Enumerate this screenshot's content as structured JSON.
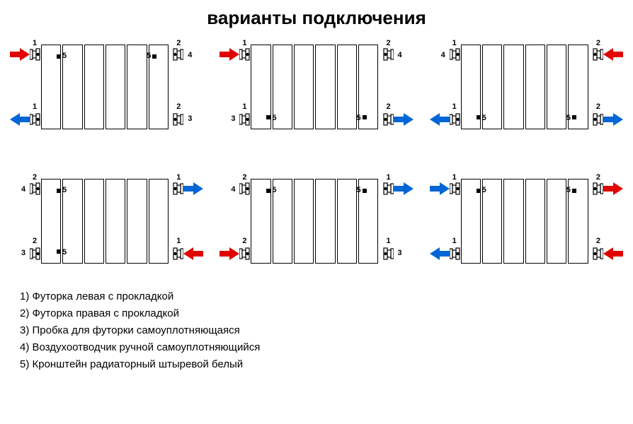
{
  "title": "варианты подключения",
  "colors": {
    "red": "#e20000",
    "blue": "#0066d6",
    "black": "#000000"
  },
  "labels": {
    "futorka_left": "1",
    "futorka_right": "2",
    "plug": "3",
    "air_vent": "4",
    "bracket": "5"
  },
  "legend": [
    "1) Футорка левая с прокладкой",
    "2) Футорка правая с прокладкой",
    "3) Пробка для футорки самоуплотняющаяся",
    "4) Воздухоотводчик ручной самоуплотняющийся",
    "5) Кронштейн радиаторный штыревой белый"
  ],
  "diagrams": [
    {
      "id": "top-left",
      "corners": {
        "tl": {
          "fitting": "1",
          "arrow": {
            "dir": "right",
            "color": "red"
          }
        },
        "tr": {
          "fitting": "2",
          "cap": "4"
        },
        "bl": {
          "fitting": "1",
          "arrow": {
            "dir": "left",
            "color": "blue"
          }
        },
        "br": {
          "fitting": "2",
          "cap": "3"
        }
      },
      "brackets": [
        "tl",
        "tr"
      ]
    },
    {
      "id": "top-mid",
      "corners": {
        "tl": {
          "fitting": "1",
          "arrow": {
            "dir": "right",
            "color": "red"
          }
        },
        "tr": {
          "fitting": "2",
          "cap": "4"
        },
        "bl": {
          "fitting": "1",
          "cap": "3"
        },
        "br": {
          "fitting": "2",
          "arrow": {
            "dir": "right",
            "color": "blue"
          }
        }
      },
      "brackets": [
        "bl",
        "br"
      ]
    },
    {
      "id": "top-right",
      "corners": {
        "tl": {
          "fitting": "1",
          "cap": "4"
        },
        "tr": {
          "fitting": "2",
          "arrow": {
            "dir": "left",
            "color": "red"
          }
        },
        "bl": {
          "fitting": "1",
          "arrow": {
            "dir": "left",
            "color": "blue"
          }
        },
        "br": {
          "fitting": "2",
          "arrow": {
            "dir": "right",
            "color": "blue"
          }
        }
      },
      "brackets": [
        "bl",
        "br"
      ]
    },
    {
      "id": "bot-left",
      "corners": {
        "tl": {
          "fitting": "2",
          "cap": "4"
        },
        "tr": {
          "fitting": "1",
          "arrow": {
            "dir": "right",
            "color": "blue"
          }
        },
        "bl": {
          "fitting": "2",
          "cap": "3"
        },
        "br": {
          "fitting": "1",
          "arrow": {
            "dir": "left",
            "color": "red"
          }
        }
      },
      "brackets": [
        "tl",
        "bl"
      ]
    },
    {
      "id": "bot-mid",
      "corners": {
        "tl": {
          "fitting": "2",
          "cap": "4"
        },
        "tr": {
          "fitting": "1",
          "arrow": {
            "dir": "right",
            "color": "blue"
          }
        },
        "bl": {
          "fitting": "2",
          "arrow": {
            "dir": "right",
            "color": "red"
          }
        },
        "br": {
          "fitting": "1",
          "cap": "3"
        }
      },
      "brackets": [
        "tl",
        "tr"
      ]
    },
    {
      "id": "bot-right",
      "corners": {
        "tl": {
          "fitting": "1",
          "arrow": {
            "dir": "right",
            "color": "blue"
          }
        },
        "tr": {
          "fitting": "2",
          "arrow": {
            "dir": "right",
            "color": "red"
          }
        },
        "bl": {
          "fitting": "1",
          "arrow": {
            "dir": "left",
            "color": "blue"
          }
        },
        "br": {
          "fitting": "2",
          "arrow": {
            "dir": "left",
            "color": "red"
          }
        }
      },
      "brackets": [
        "tl",
        "tr"
      ]
    }
  ]
}
